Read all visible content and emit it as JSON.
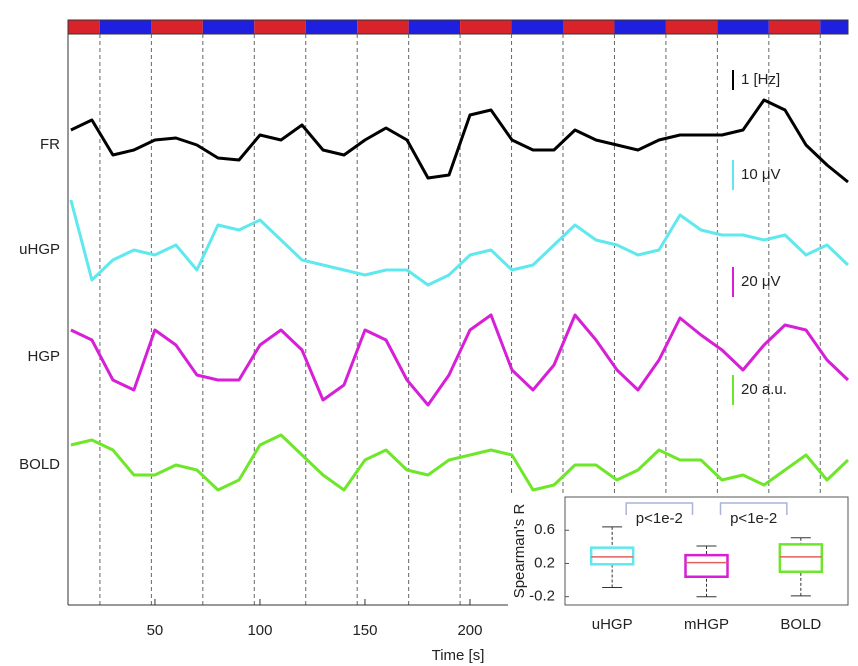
{
  "chart_data": [
    {
      "type": "line",
      "xlabel": "Time [s]",
      "xlim": [
        8.6,
        380
      ],
      "xticks": [
        50,
        100,
        150,
        200
      ],
      "ylim": [
        0,
        58.5
      ],
      "yticks": [
        {
          "value": 46,
          "label": "FR"
        },
        {
          "value": 35.5,
          "label": "uHGP"
        },
        {
          "value": 24.8,
          "label": "HGP"
        },
        {
          "value": 14,
          "label": "BOLD"
        }
      ],
      "block_edges": [
        23.8,
        48.3,
        72.8,
        97.3,
        121.8,
        146.3,
        170.8,
        195.3,
        219.8,
        244.3,
        268.8,
        293.3,
        317.8,
        342.3,
        366.8
      ],
      "block_colors": [
        "#d8232a",
        "#1f1fe0"
      ],
      "x": [
        10,
        20,
        30,
        40,
        50,
        60,
        70,
        80,
        90,
        100,
        110,
        120,
        130,
        140,
        150,
        160,
        170,
        180,
        190,
        200,
        210,
        220,
        230,
        240,
        250,
        260,
        270,
        280,
        290,
        300,
        310,
        320,
        330,
        340,
        350,
        360,
        370,
        380
      ],
      "series": [
        {
          "name": "FR",
          "color": "#000000",
          "values": [
            47.5,
            48.5,
            45,
            45.5,
            46.5,
            46.7,
            46,
            44.7,
            44.5,
            47,
            46.5,
            48,
            45.5,
            45,
            46.5,
            47.7,
            46.5,
            42.7,
            43,
            49,
            49.5,
            46.5,
            45.5,
            45.5,
            47.5,
            46.5,
            46,
            45.5,
            46.5,
            47,
            47,
            47,
            47.5,
            50.5,
            49.5,
            46,
            44,
            42.3
          ]
        },
        {
          "name": "uHGP",
          "color": "#5fe8ee",
          "values": [
            40.5,
            32.5,
            34.5,
            35.5,
            35,
            36,
            33.5,
            38,
            37.5,
            38.5,
            36.5,
            34.5,
            34,
            33.5,
            33,
            33.5,
            33.5,
            32,
            33,
            35,
            35.5,
            33.5,
            34,
            36,
            38,
            36.5,
            36,
            35,
            35.5,
            39,
            37.5,
            37,
            37,
            36.5,
            37,
            35,
            36,
            34
          ]
        },
        {
          "name": "HGP",
          "color": "#d61fd6",
          "values": [
            27.5,
            26.5,
            22.5,
            21.5,
            27.5,
            26,
            23,
            22.5,
            22.5,
            26,
            27.5,
            25.5,
            20.5,
            22,
            27.5,
            26.5,
            22.5,
            20,
            23,
            27.5,
            29,
            23.5,
            21.5,
            24,
            29,
            26.5,
            23.5,
            21.5,
            24.5,
            28.7,
            27,
            25.5,
            23.5,
            26,
            28,
            27.5,
            24.5,
            22.5
          ]
        },
        {
          "name": "BOLD",
          "color": "#6ee62a",
          "values": [
            16,
            16.5,
            15.5,
            13,
            13,
            14,
            13.5,
            11.5,
            12.5,
            16,
            17,
            15,
            13,
            11.5,
            14.5,
            15.5,
            13.5,
            13,
            14.5,
            15,
            15.5,
            15,
            11.5,
            12,
            14,
            14,
            12.5,
            13.5,
            15.5,
            14.5,
            14.5,
            12.5,
            13,
            12,
            13.5,
            15,
            12.5,
            14.5
          ]
        }
      ],
      "scale_bars": [
        {
          "label": "1 [Hz]",
          "color": "#000000",
          "range": [
            51.5,
            53.5
          ]
        },
        {
          "label": "10 μV",
          "color": "#5fe8ee",
          "range": [
            41.5,
            44.5
          ]
        },
        {
          "label": "20 μV",
          "color": "#d61fd6",
          "range": [
            30.8,
            33.8
          ]
        },
        {
          "label": "20 a.u.",
          "color": "#6ee62a",
          "range": [
            20,
            23
          ]
        }
      ]
    },
    {
      "type": "box",
      "ylabel": "Spearman's R",
      "ylim": [
        -0.3,
        1.0
      ],
      "yticks": [
        0.6,
        0.2,
        -0.2
      ],
      "categories": [
        "uHGP",
        "mHGP",
        "BOLD"
      ],
      "colors": [
        "#5fe8ee",
        "#d61fd6",
        "#6ee62a"
      ],
      "median_color": "#e06060",
      "whisker_low": [
        -0.09,
        -0.2,
        -0.19
      ],
      "q1": [
        0.19,
        0.04,
        0.1
      ],
      "median": [
        0.28,
        0.21,
        0.28
      ],
      "q3": [
        0.39,
        0.3,
        0.43
      ],
      "whisker_high": [
        0.64,
        0.41,
        0.51
      ],
      "annotations": [
        "p<1e-2",
        "p<1e-2"
      ]
    }
  ]
}
